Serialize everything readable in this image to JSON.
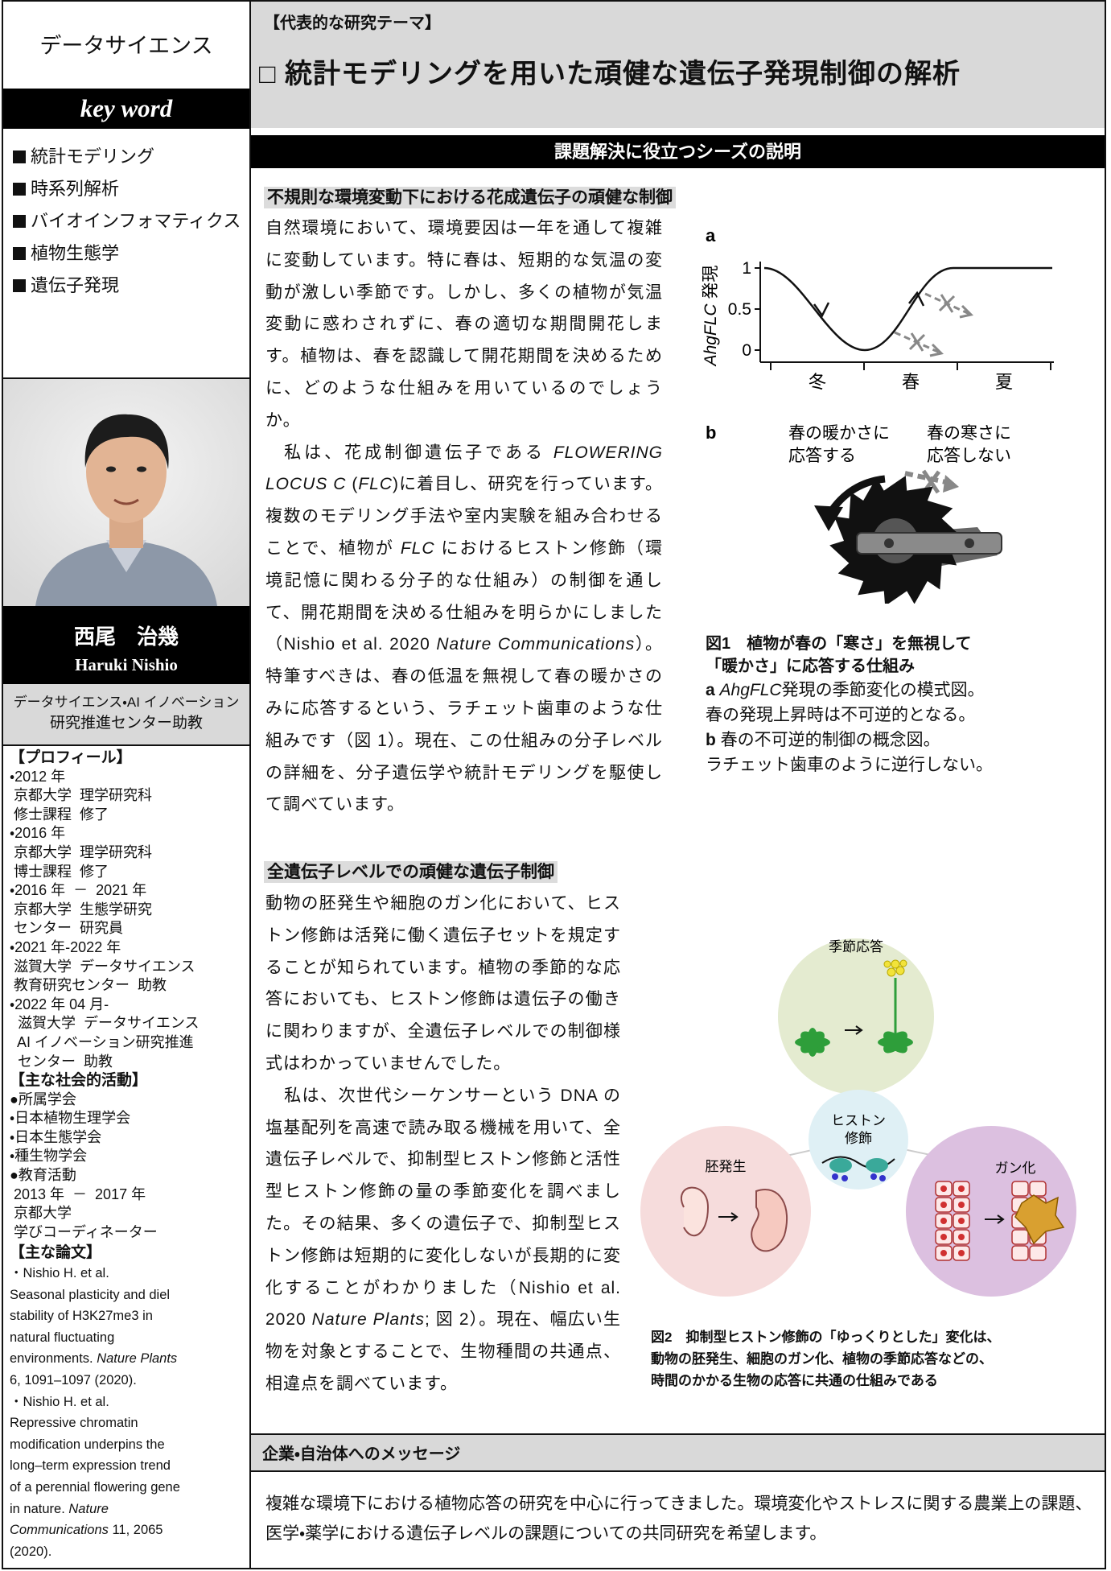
{
  "sidebar": {
    "field": "データサイエンス",
    "keyword_heading": "key word",
    "keywords": [
      "統計モデリング",
      "時系列解析",
      "バイオインフォマティクス",
      "植物生態学",
      "遺伝子発現"
    ],
    "name_ja": "西尾　治幾",
    "name_en": "Haruki Nishio",
    "affiliation": [
      "データサイエンス・AI イノベーション",
      "研究推進センター助教"
    ],
    "profile": {
      "heading": "【プロフィール】",
      "lines": [
        "・2012 年",
        " 京都大学  理学研究科",
        " 修士課程  修了",
        "・2016 年",
        " 京都大学  理学研究科",
        " 博士課程  修了",
        "・2016 年  －  2021 年",
        " 京都大学  生態学研究",
        " センター  研究員",
        "・2021 年-2022 年",
        " 滋賀大学  データサイエンス",
        " 教育研究センター  助教",
        "・2022 年 04 月-",
        "  滋賀大学  データサイエンス",
        "  AI イノベーション研究推進",
        "  センター  助教"
      ]
    },
    "activities": {
      "heading": "【主な社会的活動】",
      "lines": [
        "●所属学会",
        "・日本植物生理学会",
        "・日本生態学会",
        "・種生物学会",
        "●教育活動",
        " 2013 年  －  2017 年",
        " 京都大学",
        " 学びコーディネーター"
      ]
    },
    "papers": {
      "heading": "【主な論文】",
      "lines": [
        "・Nishio H. et al.",
        "Seasonal plasticity and diel",
        "stability of H3K27me3 in",
        "natural fluctuating",
        [
          "environments. ",
          "Nature Plants"
        ],
        "6, 1091–1097 (2020).",
        "・Nishio H. et al.",
        "Repressive chromatin",
        "modification underpins the",
        "long–term expression trend",
        "of a perennial flowering gene",
        [
          "in nature. ",
          "Nature"
        ],
        [
          "Communications",
          " 11, 2065"
        ],
        "(2020)."
      ]
    }
  },
  "header": {
    "label": "【代表的な研究テーマ】",
    "title": "□  統計モデリングを用いた頑健な遺伝子発現制御の解析"
  },
  "seeds_band": "課題解決に役立つシーズの説明",
  "topic1": {
    "heading": "不規則な環境変動下における花成遺伝子の頑健な制御",
    "paragraphs": [
      "自然環境において、環境要因は一年を通して複雑に変動しています。特に春は、短期的な気温の変動が激しい季節です。しかし、多くの植物が気温変動に惑わされずに、春の適切な期間開花します。植物は、春を認識して開花期間を決めるために、どのような仕組みを用いているのでしょうか。",
      [
        "私は、花成制御遺伝子である ",
        "FLOWERING LOCUS C",
        " (",
        "FLC",
        ")に着目し、研究を行っています。複数のモデリング手法や室内実験を組み合わせることで、植物が ",
        "FLC",
        " におけるヒストン修飾（環境記憶に関わる分子的な仕組み）の制御を通して、開花期間を決める仕組みを明らかにしました（Nishio et al. 2020 ",
        "Nature Communications",
        "）。特筆すべきは、春の低温を無視して春の暖かさのみに応答するという、ラチェット歯車のような仕組みです（図 1）。現在、この仕組みの分子レベルの詳細を、分子遺伝学や統計モデリングを駆使して調べています。"
      ]
    ]
  },
  "topic2": {
    "heading": "全遺伝子レベルでの頑健な遺伝子制御",
    "paragraphs": [
      "動物の胚発生や細胞のガン化において、ヒストン修飾は活発に働く遺伝子セットを規定することが知られています。植物の季節的な応答においても、ヒストン修飾は遺伝子の働きに関わりますが、全遺伝子レベルでの制御様式はわかっていませんでした。",
      [
        "私は、次世代シーケンサーという DNA の塩基配列を高速で読み取る機械を用いて、全遺伝子レベルで、抑制型ヒストン修飾と活性型ヒストン修飾の量の季節変化を調べました。その結果、多くの遺伝子で、抑制型ヒストン修飾は短期的に変化しないが長期的に変化することがわかりました（Nishio et al. 2020 ",
        "Nature Plants",
        "; 図 2）。現在、幅広い生物を対象とすることで、生物種間の共通点、相違点を調べています。"
      ]
    ]
  },
  "figure1": {
    "panel_a": {
      "label": "a",
      "ylabel_gene": "AhgFLC",
      "ylabel_rest": " 発現",
      "yticks": [
        0,
        0.5,
        1
      ],
      "seasons": [
        "冬",
        "春",
        "夏"
      ]
    },
    "panel_b": {
      "label": "b",
      "warm": [
        "春の暖かさに",
        "応答する"
      ],
      "cold": [
        "春の寒さに",
        "応答しない"
      ]
    },
    "caption": {
      "title": [
        "図1　植物が春の「寒さ」を無視して",
        "「暖かさ」に応答する仕組み"
      ],
      "a_label": "a",
      "a_gene": "AhgFLC",
      "a_text": [
        "発現の季節変化の模式図。",
        "春の発現上昇時は不可逆的となる。"
      ],
      "b_label": "b",
      "b_text": [
        "春の不可逆的制御の概念図。",
        "ラチェット歯車のように逆行しない。"
      ]
    }
  },
  "figure2": {
    "seasonal": "季節応答",
    "histone": [
      "ヒストン",
      "修飾"
    ],
    "embryo": "胚発生",
    "cancer": "ガン化",
    "caption": [
      "図2　抑制型ヒストン修飾の「ゆっくりとした」変化は、",
      "動物の胚発生、細胞のガン化、植物の季節応答などの、",
      "時間のかかる生物の応答に共通の仕組みである"
    ]
  },
  "message": {
    "heading": "企業・自治体へのメッセージ",
    "text": "複雑な環境下における植物応答の研究を中心に行ってきました。環境変化やストレスに関する農業上の課題、医学・薬学における遺伝子レベルの課題についての共同研究を希望します。"
  }
}
